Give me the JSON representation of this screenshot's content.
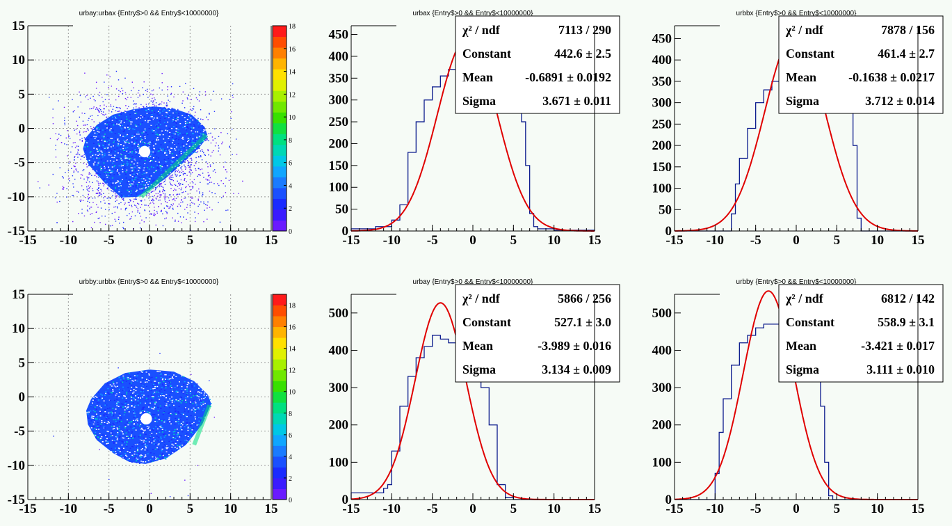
{
  "colors": {
    "background": "#f6fbf6",
    "histogram": "#0a1a8c",
    "fit": "#e00000",
    "grid": "#9a9a9a"
  },
  "palette": [
    "#6a1bff",
    "#3a1bff",
    "#1a2bff",
    "#1a50ff",
    "#1a7bff",
    "#10a6ff",
    "#00c8e6",
    "#00d8b4",
    "#00e080",
    "#10e040",
    "#38e000",
    "#70e800",
    "#a8f000",
    "#e0f000",
    "#ffe000",
    "#ffb400",
    "#ff8000",
    "#ff4d00",
    "#ff1a1a"
  ],
  "chart_data": [
    {
      "id": "p1",
      "type": "heatmap",
      "title": "urbay:urbax {Entry$>0 && Entry$<10000000}",
      "xlim": [
        -15,
        15
      ],
      "ylim": [
        -15,
        15
      ],
      "xticks": [
        "-15",
        "-10",
        "-5",
        "0",
        "5",
        "10",
        "15"
      ],
      "yticks": [
        "-15",
        "-10",
        "-5",
        "0",
        "5",
        "10",
        "15"
      ],
      "zlim": [
        0,
        18
      ],
      "zticks": [
        "0",
        "2",
        "4",
        "6",
        "8",
        "10",
        "12",
        "14",
        "16",
        "18"
      ],
      "grid": true,
      "blob": {
        "x": [
          -8.2,
          -7.8,
          -6.5,
          -4.5,
          -2.0,
          0.5,
          3.0,
          5.2,
          6.8,
          7.2,
          6.0,
          4.0,
          2.0,
          0.0,
          -1.5,
          -3.5,
          -5.5,
          -7.5
        ],
        "y": [
          -3.0,
          -1.3,
          0.5,
          2.0,
          2.8,
          3.2,
          2.9,
          2.0,
          0.2,
          -1.2,
          -3.0,
          -5.2,
          -7.3,
          -9.0,
          -10.0,
          -10.1,
          -8.0,
          -5.3
        ]
      },
      "hole": {
        "x": -0.6,
        "y": -3.4,
        "r": 0.7
      },
      "edge": {
        "x1": 7.0,
        "y1": -1.0,
        "x2": -1.0,
        "y2": -10.0
      }
    },
    {
      "id": "p2",
      "type": "histogram",
      "title": "urbax {Entry$>0 && Entry$<10000000}",
      "xlim": [
        -15,
        15
      ],
      "ylim": [
        0,
        470
      ],
      "xticks": [
        "-15",
        "-10",
        "-5",
        "0",
        "5",
        "10",
        "15"
      ],
      "yticks": [
        "0",
        "50",
        "100",
        "150",
        "200",
        "250",
        "300",
        "350",
        "400",
        "450"
      ],
      "hist": {
        "edges": [
          -15,
          -12,
          -10,
          -9,
          -8,
          -7,
          -6,
          -5,
          -4,
          -3,
          -2,
          -1,
          0,
          1,
          2,
          3,
          4,
          5,
          6,
          6.5,
          7,
          7.5,
          8,
          10,
          15
        ],
        "counts": [
          5,
          10,
          25,
          60,
          180,
          250,
          300,
          330,
          355,
          370,
          380,
          380,
          380,
          375,
          370,
          370,
          365,
          340,
          250,
          150,
          40,
          10,
          5,
          2
        ]
      },
      "fit": {
        "constant": 442.6,
        "mean": -0.6891,
        "sigma": 3.671
      },
      "stats": [
        {
          "label": "χ² / ndf",
          "value": "7113 / 290"
        },
        {
          "label": "Constant",
          "value": "442.6 ± 2.5"
        },
        {
          "label": "Mean",
          "value": "-0.6891 ± 0.0192"
        },
        {
          "label": "Sigma",
          "value": "3.671 ± 0.011"
        }
      ]
    },
    {
      "id": "p3",
      "type": "histogram",
      "title": "urbbx {Entry$>0 && Entry$<10000000}",
      "xlim": [
        -15,
        15
      ],
      "ylim": [
        0,
        480
      ],
      "xticks": [
        "-15",
        "-10",
        "-5",
        "0",
        "5",
        "10",
        "15"
      ],
      "yticks": [
        "0",
        "50",
        "100",
        "150",
        "200",
        "250",
        "300",
        "350",
        "400",
        "450"
      ],
      "hist": {
        "edges": [
          -15,
          -8,
          -7.5,
          -7,
          -6,
          -5,
          -4,
          -3,
          -2,
          -1,
          0,
          1,
          2,
          3,
          4,
          5,
          6,
          7,
          7.5,
          8,
          15
        ],
        "counts": [
          0,
          40,
          110,
          170,
          240,
          300,
          330,
          350,
          360,
          360,
          360,
          355,
          350,
          345,
          340,
          330,
          300,
          200,
          30,
          0
        ]
      },
      "fit": {
        "constant": 461.4,
        "mean": -0.1638,
        "sigma": 3.712
      },
      "stats": [
        {
          "label": "χ² / ndf",
          "value": "7878 / 156"
        },
        {
          "label": "Constant",
          "value": "461.4 ± 2.7"
        },
        {
          "label": "Mean",
          "value": "-0.1638 ± 0.0217"
        },
        {
          "label": "Sigma",
          "value": "3.712 ± 0.014"
        }
      ]
    },
    {
      "id": "p4",
      "type": "heatmap",
      "title": "urbby:urbbx {Entry$>0 && Entry$<10000000}",
      "xlim": [
        -15,
        15
      ],
      "ylim": [
        -15,
        15
      ],
      "xticks": [
        "-15",
        "-10",
        "-5",
        "0",
        "5",
        "10",
        "15"
      ],
      "yticks": [
        "-15",
        "-10",
        "-5",
        "0",
        "5",
        "10",
        "15"
      ],
      "zlim": [
        0,
        19
      ],
      "zticks": [
        "0",
        "2",
        "4",
        "6",
        "8",
        "10",
        "12",
        "14",
        "16",
        "18"
      ],
      "grid": true,
      "blob": {
        "x": [
          -7.8,
          -7.2,
          -5.5,
          -3.0,
          0.0,
          3.0,
          5.5,
          7.2,
          7.6,
          6.5,
          4.5,
          2.0,
          -0.5,
          -2.5,
          -4.5,
          -6.5,
          -7.6
        ],
        "y": [
          -2.0,
          -0.3,
          2.0,
          3.5,
          4.0,
          3.7,
          2.3,
          0.3,
          -1.0,
          -4.0,
          -7.0,
          -9.0,
          -9.8,
          -9.5,
          -8.2,
          -6.3,
          -4.0
        ]
      },
      "hole": {
        "x": -0.4,
        "y": -3.2,
        "r": 0.7
      },
      "edge": {
        "x1": 7.4,
        "y1": -1.2,
        "x2": 5.5,
        "y2": -7.0
      }
    },
    {
      "id": "p5",
      "type": "histogram",
      "title": "urbay {Entry$>0 && Entry$<10000000}",
      "xlim": [
        -15,
        15
      ],
      "ylim": [
        0,
        550
      ],
      "xticks": [
        "-15",
        "-10",
        "-5",
        "0",
        "5",
        "10",
        "15"
      ],
      "yticks": [
        "0",
        "100",
        "200",
        "300",
        "400",
        "500"
      ],
      "hist": {
        "edges": [
          -15,
          -11,
          -10.5,
          -10,
          -9,
          -8,
          -7,
          -6,
          -5,
          -4,
          -3,
          -2,
          -1,
          0,
          1,
          2,
          3,
          4,
          5,
          15
        ],
        "counts": [
          18,
          30,
          40,
          130,
          250,
          330,
          380,
          410,
          440,
          430,
          420,
          400,
          390,
          360,
          300,
          200,
          40,
          5,
          0
        ]
      },
      "fit": {
        "constant": 527.1,
        "mean": -3.989,
        "sigma": 3.134
      },
      "stats": [
        {
          "label": "χ² / ndf",
          "value": "5866 / 256"
        },
        {
          "label": "Constant",
          "value": "527.1 ± 3.0"
        },
        {
          "label": "Mean",
          "value": "-3.989 ± 0.016"
        },
        {
          "label": "Sigma",
          "value": "3.134 ± 0.009"
        }
      ]
    },
    {
      "id": "p6",
      "type": "histogram",
      "title": "urbby {Entry$>0 && Entry$<10000000}",
      "xlim": [
        -15,
        15
      ],
      "ylim": [
        0,
        550
      ],
      "xticks": [
        "-15",
        "-10",
        "-5",
        "0",
        "5",
        "10",
        "15"
      ],
      "yticks": [
        "0",
        "100",
        "200",
        "300",
        "400",
        "500"
      ],
      "hist": {
        "edges": [
          -15,
          -10,
          -9.5,
          -9,
          -8,
          -7,
          -6,
          -5,
          -4,
          -3,
          -2,
          -1,
          0,
          1,
          2,
          3,
          3.5,
          4,
          4.5,
          15
        ],
        "counts": [
          0,
          70,
          180,
          270,
          360,
          420,
          440,
          460,
          470,
          470,
          460,
          440,
          410,
          380,
          340,
          250,
          100,
          10,
          0
        ]
      },
      "fit": {
        "constant": 558.9,
        "mean": -3.421,
        "sigma": 3.111
      },
      "stats": [
        {
          "label": "χ² / ndf",
          "value": "6812 / 142"
        },
        {
          "label": "Constant",
          "value": "558.9 ± 3.1"
        },
        {
          "label": "Mean",
          "value": "-3.421 ± 0.017"
        },
        {
          "label": "Sigma",
          "value": "3.111 ± 0.010"
        }
      ]
    }
  ]
}
